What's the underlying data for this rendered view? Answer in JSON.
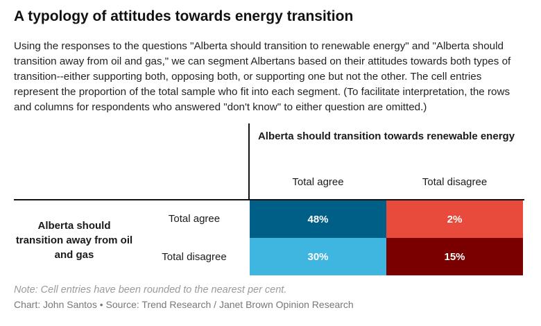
{
  "title": "A typology of attitudes towards energy transition",
  "description": "Using the responses to the questions \"Alberta should transition to renewable energy\" and \"Alberta should transition away from oil and gas,\" we can segment Albertans based on their attitudes towards both types of transition--either supporting both, opposing both, or supporting one but not the other. The cell entries represent the proportion of the total sample who fit into each segment. (To facilitate interpretation, the rows and columns for respondents who answered \"don't know\" to either question are omitted.)",
  "chart_data": {
    "type": "table",
    "column_header": "Alberta should transition towards renewable energy",
    "row_header": "Alberta should transition away from oil and gas",
    "columns": [
      "Total agree",
      "Total disagree"
    ],
    "rows": [
      "Total agree",
      "Total disagree"
    ],
    "cells": [
      [
        "48%",
        "2%"
      ],
      [
        "30%",
        "15%"
      ]
    ],
    "values": [
      [
        48,
        2
      ],
      [
        30,
        15
      ]
    ],
    "unit": "%",
    "colors": [
      [
        "#005f87",
        "#e84a3c"
      ],
      [
        "#3fb6e0",
        "#7a0000"
      ]
    ]
  },
  "note": "Note: Cell entries have been rounded to the nearest per cent.",
  "source": "Chart: John Santos • Source: Trend Research / Janet Brown Opinion Research"
}
